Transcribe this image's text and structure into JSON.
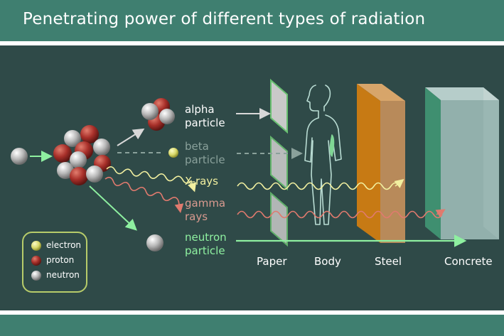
{
  "title": "Penetrating power of different types of radiation",
  "radiation": {
    "alpha": "alpha\nparticle",
    "beta": "beta\nparticle",
    "xrays": "X-rays",
    "gamma": "gamma\nrays",
    "neutron": "neutron\nparticle"
  },
  "materials": [
    "Paper",
    "Body",
    "Steel",
    "Concrete"
  ],
  "legend": [
    "electron",
    "proton",
    "neutron"
  ],
  "colors": {
    "header": "#3f7f70",
    "panel": "#2f4a48",
    "alpha": "#ffffff",
    "beta": "#8aa19b",
    "xrays": "#f2f0a0",
    "gamma": "#d99a8f",
    "neutron": "#8ef0a0",
    "paper": "#c9c9c9",
    "steel": "#c48b4d",
    "concrete": "#9bb9b5"
  }
}
